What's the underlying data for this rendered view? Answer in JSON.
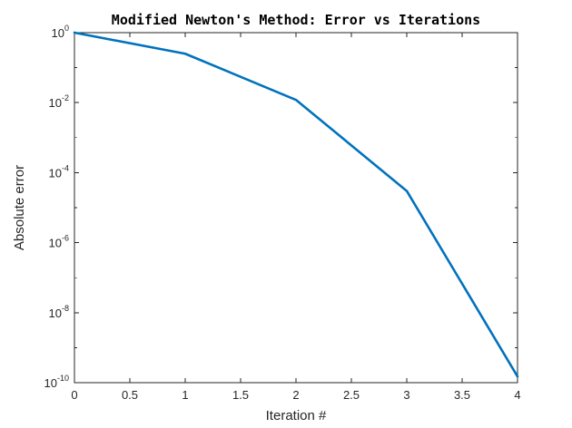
{
  "chart_data": {
    "type": "line",
    "title": "Modified Newton's Method: Error vs Iterations",
    "xlabel": "Iteration #",
    "ylabel": "Absolute error",
    "x": [
      0,
      1,
      2,
      3,
      4
    ],
    "series": [
      {
        "values": [
          1.0,
          0.25,
          0.012,
          3e-05,
          1.5e-10
        ],
        "color": "#0072BD"
      }
    ],
    "xlim": [
      0,
      4
    ],
    "ylim": [
      1e-10,
      1
    ],
    "yscale": "log",
    "x_ticks": [
      0,
      0.5,
      1,
      1.5,
      2,
      2.5,
      3,
      3.5,
      4
    ],
    "x_tick_labels": [
      "0",
      "0.5",
      "1",
      "1.5",
      "2",
      "2.5",
      "3",
      "3.5",
      "4"
    ],
    "y_ticks": [
      {
        "base": "10",
        "exp": "0",
        "value": 1
      },
      {
        "base": "10",
        "exp": "-2",
        "value": 0.01
      },
      {
        "base": "10",
        "exp": "-4",
        "value": 0.0001
      },
      {
        "base": "10",
        "exp": "-6",
        "value": 1e-06
      },
      {
        "base": "10",
        "exp": "-8",
        "value": 1e-08
      },
      {
        "base": "10",
        "exp": "-10",
        "value": 1e-10
      }
    ],
    "grid": false,
    "box": true
  }
}
